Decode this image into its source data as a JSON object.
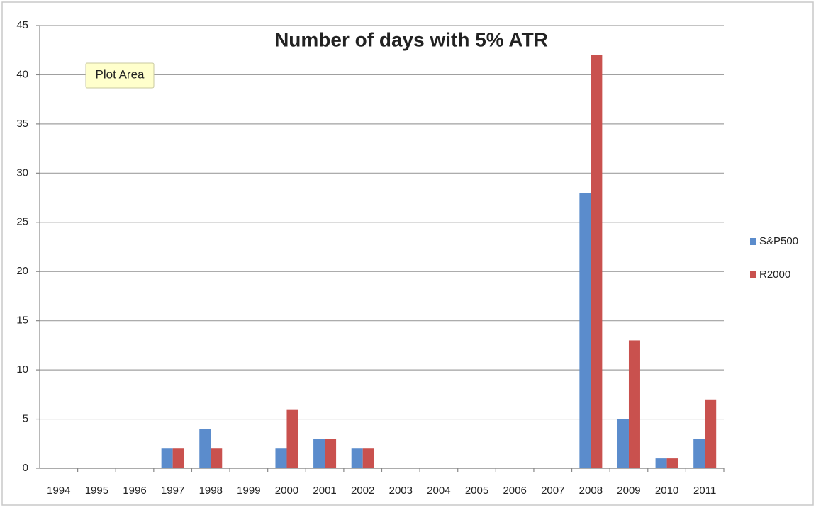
{
  "chart_data": {
    "type": "bar",
    "title": "Number of days with 5% ATR",
    "tooltip": "Plot Area",
    "categories": [
      "1994",
      "1995",
      "1996",
      "1997",
      "1998",
      "1999",
      "2000",
      "2001",
      "2002",
      "2003",
      "2004",
      "2005",
      "2006",
      "2007",
      "2008",
      "2009",
      "2010",
      "2011"
    ],
    "series": [
      {
        "name": "S&P500",
        "color": "#5b8ccc",
        "values": [
          0,
          0,
          0,
          2,
          4,
          0,
          2,
          3,
          2,
          0,
          0,
          0,
          0,
          0,
          28,
          5,
          1,
          3
        ]
      },
      {
        "name": "R2000",
        "color": "#c9514e",
        "values": [
          0,
          0,
          0,
          2,
          2,
          0,
          6,
          3,
          2,
          0,
          0,
          0,
          0,
          0,
          42,
          13,
          1,
          7
        ]
      }
    ],
    "ylim": [
      0,
      45
    ],
    "yticks": [
      0,
      5,
      10,
      15,
      20,
      25,
      30,
      35,
      40,
      45
    ],
    "grid": true,
    "legend": "right"
  }
}
